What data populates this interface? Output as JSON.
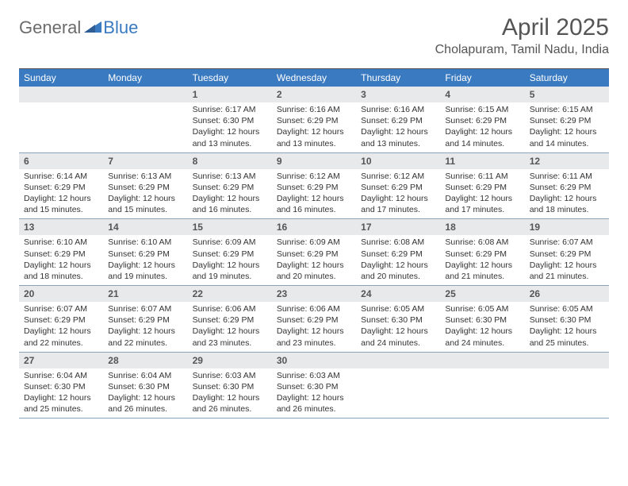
{
  "brand": {
    "part1": "General",
    "part2": "Blue"
  },
  "title": "April 2025",
  "location": "Cholapuram, Tamil Nadu, India",
  "colors": {
    "header_bg": "#3a7ac0",
    "daynum_bg": "#e8e9ea",
    "week_border": "#8aa3b8",
    "text": "#333333"
  },
  "day_names": [
    "Sunday",
    "Monday",
    "Tuesday",
    "Wednesday",
    "Thursday",
    "Friday",
    "Saturday"
  ],
  "weeks": [
    [
      {
        "n": "",
        "sr": "",
        "ss": "",
        "dl": ""
      },
      {
        "n": "",
        "sr": "",
        "ss": "",
        "dl": ""
      },
      {
        "n": "1",
        "sr": "Sunrise: 6:17 AM",
        "ss": "Sunset: 6:30 PM",
        "dl": "Daylight: 12 hours and 13 minutes."
      },
      {
        "n": "2",
        "sr": "Sunrise: 6:16 AM",
        "ss": "Sunset: 6:29 PM",
        "dl": "Daylight: 12 hours and 13 minutes."
      },
      {
        "n": "3",
        "sr": "Sunrise: 6:16 AM",
        "ss": "Sunset: 6:29 PM",
        "dl": "Daylight: 12 hours and 13 minutes."
      },
      {
        "n": "4",
        "sr": "Sunrise: 6:15 AM",
        "ss": "Sunset: 6:29 PM",
        "dl": "Daylight: 12 hours and 14 minutes."
      },
      {
        "n": "5",
        "sr": "Sunrise: 6:15 AM",
        "ss": "Sunset: 6:29 PM",
        "dl": "Daylight: 12 hours and 14 minutes."
      }
    ],
    [
      {
        "n": "6",
        "sr": "Sunrise: 6:14 AM",
        "ss": "Sunset: 6:29 PM",
        "dl": "Daylight: 12 hours and 15 minutes."
      },
      {
        "n": "7",
        "sr": "Sunrise: 6:13 AM",
        "ss": "Sunset: 6:29 PM",
        "dl": "Daylight: 12 hours and 15 minutes."
      },
      {
        "n": "8",
        "sr": "Sunrise: 6:13 AM",
        "ss": "Sunset: 6:29 PM",
        "dl": "Daylight: 12 hours and 16 minutes."
      },
      {
        "n": "9",
        "sr": "Sunrise: 6:12 AM",
        "ss": "Sunset: 6:29 PM",
        "dl": "Daylight: 12 hours and 16 minutes."
      },
      {
        "n": "10",
        "sr": "Sunrise: 6:12 AM",
        "ss": "Sunset: 6:29 PM",
        "dl": "Daylight: 12 hours and 17 minutes."
      },
      {
        "n": "11",
        "sr": "Sunrise: 6:11 AM",
        "ss": "Sunset: 6:29 PM",
        "dl": "Daylight: 12 hours and 17 minutes."
      },
      {
        "n": "12",
        "sr": "Sunrise: 6:11 AM",
        "ss": "Sunset: 6:29 PM",
        "dl": "Daylight: 12 hours and 18 minutes."
      }
    ],
    [
      {
        "n": "13",
        "sr": "Sunrise: 6:10 AM",
        "ss": "Sunset: 6:29 PM",
        "dl": "Daylight: 12 hours and 18 minutes."
      },
      {
        "n": "14",
        "sr": "Sunrise: 6:10 AM",
        "ss": "Sunset: 6:29 PM",
        "dl": "Daylight: 12 hours and 19 minutes."
      },
      {
        "n": "15",
        "sr": "Sunrise: 6:09 AM",
        "ss": "Sunset: 6:29 PM",
        "dl": "Daylight: 12 hours and 19 minutes."
      },
      {
        "n": "16",
        "sr": "Sunrise: 6:09 AM",
        "ss": "Sunset: 6:29 PM",
        "dl": "Daylight: 12 hours and 20 minutes."
      },
      {
        "n": "17",
        "sr": "Sunrise: 6:08 AM",
        "ss": "Sunset: 6:29 PM",
        "dl": "Daylight: 12 hours and 20 minutes."
      },
      {
        "n": "18",
        "sr": "Sunrise: 6:08 AM",
        "ss": "Sunset: 6:29 PM",
        "dl": "Daylight: 12 hours and 21 minutes."
      },
      {
        "n": "19",
        "sr": "Sunrise: 6:07 AM",
        "ss": "Sunset: 6:29 PM",
        "dl": "Daylight: 12 hours and 21 minutes."
      }
    ],
    [
      {
        "n": "20",
        "sr": "Sunrise: 6:07 AM",
        "ss": "Sunset: 6:29 PM",
        "dl": "Daylight: 12 hours and 22 minutes."
      },
      {
        "n": "21",
        "sr": "Sunrise: 6:07 AM",
        "ss": "Sunset: 6:29 PM",
        "dl": "Daylight: 12 hours and 22 minutes."
      },
      {
        "n": "22",
        "sr": "Sunrise: 6:06 AM",
        "ss": "Sunset: 6:29 PM",
        "dl": "Daylight: 12 hours and 23 minutes."
      },
      {
        "n": "23",
        "sr": "Sunrise: 6:06 AM",
        "ss": "Sunset: 6:29 PM",
        "dl": "Daylight: 12 hours and 23 minutes."
      },
      {
        "n": "24",
        "sr": "Sunrise: 6:05 AM",
        "ss": "Sunset: 6:30 PM",
        "dl": "Daylight: 12 hours and 24 minutes."
      },
      {
        "n": "25",
        "sr": "Sunrise: 6:05 AM",
        "ss": "Sunset: 6:30 PM",
        "dl": "Daylight: 12 hours and 24 minutes."
      },
      {
        "n": "26",
        "sr": "Sunrise: 6:05 AM",
        "ss": "Sunset: 6:30 PM",
        "dl": "Daylight: 12 hours and 25 minutes."
      }
    ],
    [
      {
        "n": "27",
        "sr": "Sunrise: 6:04 AM",
        "ss": "Sunset: 6:30 PM",
        "dl": "Daylight: 12 hours and 25 minutes."
      },
      {
        "n": "28",
        "sr": "Sunrise: 6:04 AM",
        "ss": "Sunset: 6:30 PM",
        "dl": "Daylight: 12 hours and 26 minutes."
      },
      {
        "n": "29",
        "sr": "Sunrise: 6:03 AM",
        "ss": "Sunset: 6:30 PM",
        "dl": "Daylight: 12 hours and 26 minutes."
      },
      {
        "n": "30",
        "sr": "Sunrise: 6:03 AM",
        "ss": "Sunset: 6:30 PM",
        "dl": "Daylight: 12 hours and 26 minutes."
      },
      {
        "n": "",
        "sr": "",
        "ss": "",
        "dl": ""
      },
      {
        "n": "",
        "sr": "",
        "ss": "",
        "dl": ""
      },
      {
        "n": "",
        "sr": "",
        "ss": "",
        "dl": ""
      }
    ]
  ]
}
